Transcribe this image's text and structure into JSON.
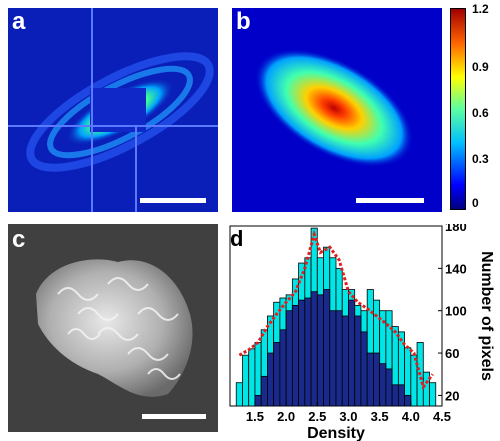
{
  "panels": {
    "a": {
      "label": "a"
    },
    "b": {
      "label": "b"
    },
    "c": {
      "label": "c"
    },
    "d": {
      "label": "d"
    }
  },
  "colorbar": {
    "ticks": [
      "1.2",
      "0.9",
      "0.6",
      "0.3",
      "0"
    ],
    "range": [
      0,
      1.3
    ],
    "colormap": "jet"
  },
  "chart_data": {
    "type": "bar",
    "xlabel": "Density",
    "ylabel": "Number of pixels",
    "xlim": [
      1.1,
      4.5
    ],
    "ylim": [
      10,
      180
    ],
    "xticks": [
      "1.5",
      "2.0",
      "2.5",
      "3.0",
      "3.5",
      "4.0",
      "4.5"
    ],
    "yticks": [
      "20",
      "60",
      "100",
      "140",
      "180"
    ],
    "y_axis_side": "right",
    "bin_edges": [
      1.2,
      1.3,
      1.4,
      1.5,
      1.6,
      1.7,
      1.8,
      1.9,
      2.0,
      2.1,
      2.2,
      2.3,
      2.4,
      2.5,
      2.6,
      2.7,
      2.8,
      2.9,
      3.0,
      3.1,
      3.2,
      3.3,
      3.4,
      3.5,
      3.6,
      3.7,
      3.8,
      3.9,
      4.0,
      4.1,
      4.2,
      4.3,
      4.4
    ],
    "series": [
      {
        "color": "#00e5e5",
        "values": [
          32,
          58,
          64,
          70,
          82,
          95,
          108,
          112,
          115,
          130,
          145,
          150,
          178,
          150,
          160,
          150,
          140,
          120,
          120,
          105,
          100,
          120,
          110,
          100,
          100,
          85,
          80,
          65,
          58,
          70,
          42,
          32
        ]
      },
      {
        "color": "#1a2a8c",
        "values": [
          0,
          0,
          0,
          20,
          38,
          60,
          70,
          82,
          100,
          105,
          110,
          112,
          118,
          115,
          120,
          100,
          100,
          95,
          110,
          95,
          80,
          60,
          60,
          50,
          45,
          30,
          30,
          20,
          10,
          10,
          0,
          0
        ]
      }
    ],
    "fit_line": {
      "color": "#e02020",
      "x": [
        1.25,
        1.4,
        1.55,
        1.7,
        1.85,
        2.0,
        2.15,
        2.3,
        2.45,
        2.55,
        2.7,
        2.85,
        3.0,
        3.15,
        3.3,
        3.45,
        3.6,
        3.75,
        3.9,
        4.05,
        4.2,
        4.35
      ],
      "y": [
        58,
        63,
        70,
        85,
        97,
        108,
        118,
        140,
        172,
        155,
        160,
        148,
        118,
        108,
        102,
        95,
        88,
        80,
        68,
        60,
        28,
        40
      ]
    }
  }
}
